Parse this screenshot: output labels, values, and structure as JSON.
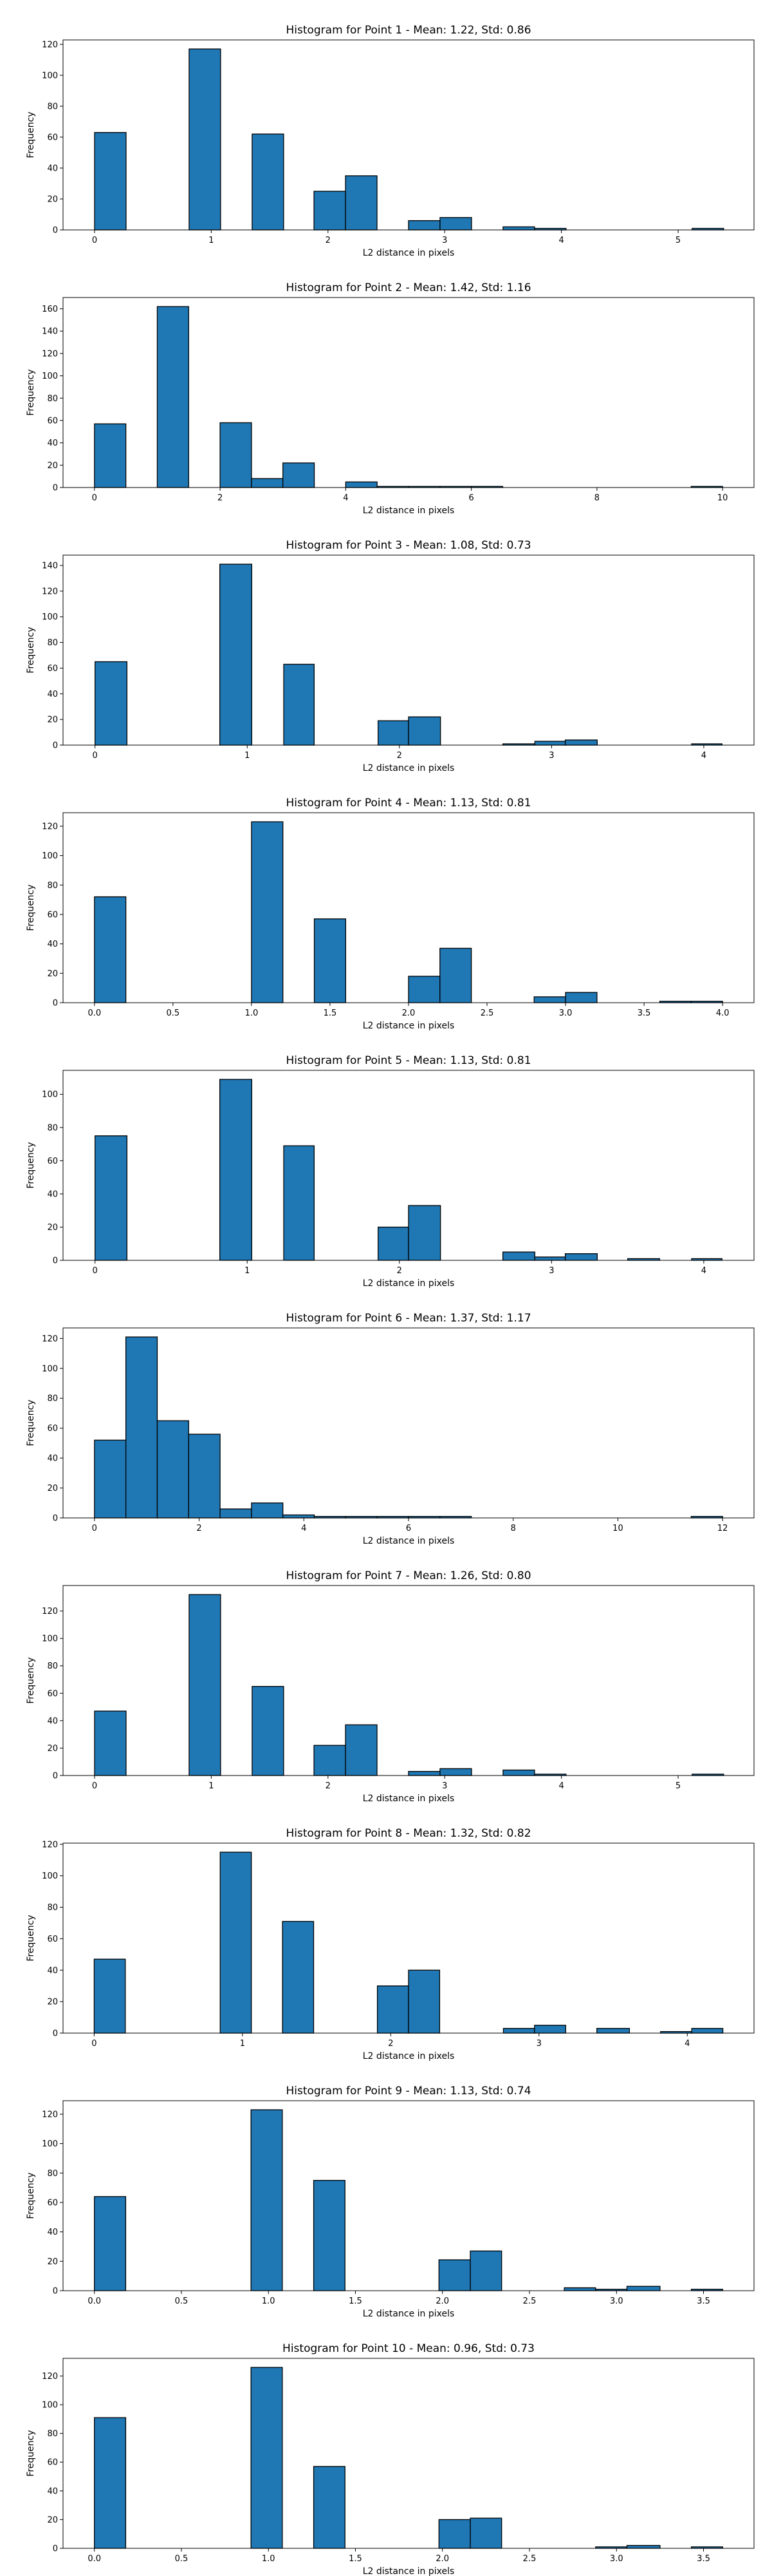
{
  "chart_data": [
    {
      "type": "histogram",
      "title": "Histogram for Point 1 - Mean: 1.22, Std: 0.86",
      "xlabel": "L2 distance in pixels",
      "ylabel": "Frequency",
      "color": "#1f77b4",
      "edgecolor": "#000000",
      "bins": [
        0,
        0.27,
        0.54,
        0.81,
        1.08,
        1.35,
        1.62,
        1.88,
        2.15,
        2.42,
        2.69,
        2.96,
        3.23,
        3.5,
        3.77,
        4.04,
        4.31,
        4.58,
        4.85,
        5.12,
        5.39
      ],
      "values": [
        63,
        0,
        0,
        117,
        0,
        62,
        0,
        25,
        35,
        0,
        6,
        8,
        0,
        2,
        1,
        0,
        0,
        0,
        0,
        1
      ],
      "xlim": [
        -0.27,
        5.65
      ],
      "xticks": [
        0,
        1,
        2,
        3,
        4,
        5
      ],
      "ylim": [
        0,
        122.85
      ],
      "yticks": [
        0,
        20,
        40,
        60,
        80,
        100,
        120
      ]
    },
    {
      "type": "histogram",
      "title": "Histogram for Point 2 - Mean: 1.42, Std: 1.16",
      "xlabel": "L2 distance in pixels",
      "ylabel": "Frequency",
      "color": "#1f77b4",
      "edgecolor": "#000000",
      "bins": [
        0,
        0.5,
        1,
        1.5,
        2,
        2.5,
        3,
        3.5,
        4,
        4.5,
        5,
        5.5,
        6,
        6.5,
        7,
        7.5,
        8,
        8.5,
        9,
        9.5,
        10
      ],
      "values": [
        57,
        0,
        162,
        0,
        58,
        8,
        22,
        0,
        5,
        1,
        1,
        1,
        1,
        0,
        0,
        0,
        0,
        0,
        0,
        1
      ],
      "xlim": [
        -0.5,
        10.5
      ],
      "xticks": [
        0,
        2,
        4,
        6,
        8,
        10
      ],
      "ylim": [
        0,
        170.1
      ],
      "yticks": [
        0,
        20,
        40,
        60,
        80,
        100,
        120,
        140,
        160
      ]
    },
    {
      "type": "histogram",
      "title": "Histogram for Point 3 - Mean: 1.08, Std: 0.73",
      "xlabel": "L2 distance in pixels",
      "ylabel": "Frequency",
      "color": "#1f77b4",
      "edgecolor": "#000000",
      "bins": [
        0,
        0.21,
        0.41,
        0.62,
        0.82,
        1.03,
        1.24,
        1.44,
        1.65,
        1.86,
        2.06,
        2.27,
        2.47,
        2.68,
        2.89,
        3.09,
        3.3,
        3.5,
        3.71,
        3.92,
        4.12
      ],
      "values": [
        65,
        0,
        0,
        0,
        141,
        0,
        63,
        0,
        0,
        19,
        22,
        0,
        0,
        1,
        3,
        4,
        0,
        0,
        0,
        1
      ],
      "xlim": [
        -0.21,
        4.33
      ],
      "xticks": [
        0,
        1,
        2,
        3,
        4
      ],
      "ylim": [
        0,
        148.05
      ],
      "yticks": [
        0,
        20,
        40,
        60,
        80,
        100,
        120,
        140
      ]
    },
    {
      "type": "histogram",
      "title": "Histogram for Point 4 - Mean: 1.13, Std: 0.81",
      "xlabel": "L2 distance in pixels",
      "ylabel": "Frequency",
      "color": "#1f77b4",
      "edgecolor": "#000000",
      "bins": [
        0,
        0.2,
        0.4,
        0.6,
        0.8,
        1,
        1.2,
        1.4,
        1.6,
        1.8,
        2,
        2.2,
        2.4,
        2.6,
        2.8,
        3,
        3.2,
        3.4,
        3.6,
        3.8,
        4
      ],
      "values": [
        72,
        0,
        0,
        0,
        0,
        123,
        0,
        57,
        0,
        0,
        18,
        37,
        0,
        0,
        4,
        7,
        0,
        0,
        1,
        1
      ],
      "xlim": [
        -0.2,
        4.2
      ],
      "xticks": [
        {
          "value": 0,
          "label": "0.0"
        },
        0.5,
        {
          "value": 1,
          "label": "1.0"
        },
        1.5,
        {
          "value": 2,
          "label": "2.0"
        },
        2.5,
        {
          "value": 3,
          "label": "3.0"
        },
        3.5,
        {
          "value": 4,
          "label": "4.0"
        }
      ],
      "ylim": [
        0,
        129.15
      ],
      "yticks": [
        0,
        20,
        40,
        60,
        80,
        100,
        120
      ]
    },
    {
      "type": "histogram",
      "title": "Histogram for Point 5 - Mean: 1.13, Std: 0.81",
      "xlabel": "L2 distance in pixels",
      "ylabel": "Frequency",
      "color": "#1f77b4",
      "edgecolor": "#000000",
      "bins": [
        0,
        0.21,
        0.41,
        0.62,
        0.82,
        1.03,
        1.24,
        1.44,
        1.65,
        1.86,
        2.06,
        2.27,
        2.47,
        2.68,
        2.89,
        3.09,
        3.3,
        3.5,
        3.71,
        3.92,
        4.12
      ],
      "values": [
        75,
        0,
        0,
        0,
        109,
        0,
        69,
        0,
        0,
        20,
        33,
        0,
        0,
        5,
        2,
        4,
        0,
        1,
        0,
        1
      ],
      "xlim": [
        -0.21,
        4.33
      ],
      "xticks": [
        0,
        1,
        2,
        3,
        4
      ],
      "ylim": [
        0,
        114.45
      ],
      "yticks": [
        0,
        20,
        40,
        60,
        80,
        100
      ]
    },
    {
      "type": "histogram",
      "title": "Histogram for Point 6 - Mean: 1.37, Std: 1.17",
      "xlabel": "L2 distance in pixels",
      "ylabel": "Frequency",
      "color": "#1f77b4",
      "edgecolor": "#000000",
      "bins": [
        0,
        0.6,
        1.2,
        1.8,
        2.4,
        3,
        3.6,
        4.2,
        4.8,
        5.4,
        6,
        6.6,
        7.2,
        7.8,
        8.4,
        9,
        9.6,
        10.2,
        10.8,
        11.4,
        12
      ],
      "values": [
        52,
        121,
        65,
        56,
        6,
        10,
        2,
        1,
        1,
        1,
        1,
        1,
        0,
        0,
        0,
        0,
        0,
        0,
        0,
        1
      ],
      "xlim": [
        -0.6,
        12.6
      ],
      "xticks": [
        0,
        2,
        4,
        6,
        8,
        10,
        12
      ],
      "ylim": [
        0,
        127.05
      ],
      "yticks": [
        0,
        20,
        40,
        60,
        80,
        100,
        120
      ]
    },
    {
      "type": "histogram",
      "title": "Histogram for Point 7 - Mean: 1.26, Std: 0.80",
      "xlabel": "L2 distance in pixels",
      "ylabel": "Frequency",
      "color": "#1f77b4",
      "edgecolor": "#000000",
      "bins": [
        0,
        0.27,
        0.54,
        0.81,
        1.08,
        1.35,
        1.62,
        1.88,
        2.15,
        2.42,
        2.69,
        2.96,
        3.23,
        3.5,
        3.77,
        4.04,
        4.31,
        4.58,
        4.85,
        5.12,
        5.39
      ],
      "values": [
        47,
        0,
        0,
        132,
        0,
        65,
        0,
        22,
        37,
        0,
        3,
        5,
        0,
        4,
        1,
        0,
        0,
        0,
        0,
        1
      ],
      "xlim": [
        -0.27,
        5.65
      ],
      "xticks": [
        0,
        1,
        2,
        3,
        4,
        5
      ],
      "ylim": [
        0,
        138.6
      ],
      "yticks": [
        0,
        20,
        40,
        60,
        80,
        100,
        120
      ]
    },
    {
      "type": "histogram",
      "title": "Histogram for Point 8 - Mean: 1.32, Std: 0.82",
      "xlabel": "L2 distance in pixels",
      "ylabel": "Frequency",
      "color": "#1f77b4",
      "edgecolor": "#000000",
      "bins": [
        0,
        0.21,
        0.42,
        0.64,
        0.85,
        1.06,
        1.27,
        1.48,
        1.7,
        1.91,
        2.12,
        2.33,
        2.55,
        2.76,
        2.97,
        3.18,
        3.39,
        3.61,
        3.82,
        4.03,
        4.24
      ],
      "values": [
        47,
        0,
        0,
        0,
        115,
        0,
        71,
        0,
        0,
        30,
        40,
        0,
        0,
        3,
        5,
        0,
        3,
        0,
        1,
        3
      ],
      "xlim": [
        -0.21,
        4.45
      ],
      "xticks": [
        0,
        1,
        2,
        3,
        4
      ],
      "ylim": [
        0,
        120.75
      ],
      "yticks": [
        0,
        20,
        40,
        60,
        80,
        100,
        120
      ]
    },
    {
      "type": "histogram",
      "title": "Histogram for Point 9 - Mean: 1.13, Std: 0.74",
      "xlabel": "L2 distance in pixels",
      "ylabel": "Frequency",
      "color": "#1f77b4",
      "edgecolor": "#000000",
      "bins": [
        0,
        0.18,
        0.36,
        0.54,
        0.72,
        0.9,
        1.08,
        1.26,
        1.44,
        1.62,
        1.8,
        1.98,
        2.16,
        2.34,
        2.52,
        2.7,
        2.88,
        3.06,
        3.25,
        3.43,
        3.61
      ],
      "values": [
        64,
        0,
        0,
        0,
        0,
        123,
        0,
        75,
        0,
        0,
        0,
        21,
        27,
        0,
        0,
        2,
        1,
        3,
        0,
        1
      ],
      "xlim": [
        -0.18,
        3.79
      ],
      "xticks": [
        {
          "value": 0,
          "label": "0.0"
        },
        0.5,
        {
          "value": 1,
          "label": "1.0"
        },
        1.5,
        {
          "value": 2,
          "label": "2.0"
        },
        2.5,
        {
          "value": 3,
          "label": "3.0"
        },
        3.5
      ],
      "ylim": [
        0,
        129.15
      ],
      "yticks": [
        0,
        20,
        40,
        60,
        80,
        100,
        120
      ]
    },
    {
      "type": "histogram",
      "title": "Histogram for Point 10 - Mean: 0.96, Std: 0.73",
      "xlabel": "L2 distance in pixels",
      "ylabel": "Frequency",
      "color": "#1f77b4",
      "edgecolor": "#000000",
      "bins": [
        0,
        0.18,
        0.36,
        0.54,
        0.72,
        0.9,
        1.08,
        1.26,
        1.44,
        1.62,
        1.8,
        1.98,
        2.16,
        2.34,
        2.52,
        2.7,
        2.88,
        3.06,
        3.25,
        3.43,
        3.61
      ],
      "values": [
        91,
        0,
        0,
        0,
        0,
        126,
        0,
        57,
        0,
        0,
        0,
        20,
        21,
        0,
        0,
        0,
        1,
        2,
        0,
        1
      ],
      "xlim": [
        -0.18,
        3.79
      ],
      "xticks": [
        {
          "value": 0,
          "label": "0.0"
        },
        0.5,
        {
          "value": 1,
          "label": "1.0"
        },
        1.5,
        {
          "value": 2,
          "label": "2.0"
        },
        2.5,
        {
          "value": 3,
          "label": "3.0"
        },
        3.5
      ],
      "ylim": [
        0,
        132.3
      ],
      "yticks": [
        0,
        20,
        40,
        60,
        80,
        100,
        120
      ]
    }
  ]
}
